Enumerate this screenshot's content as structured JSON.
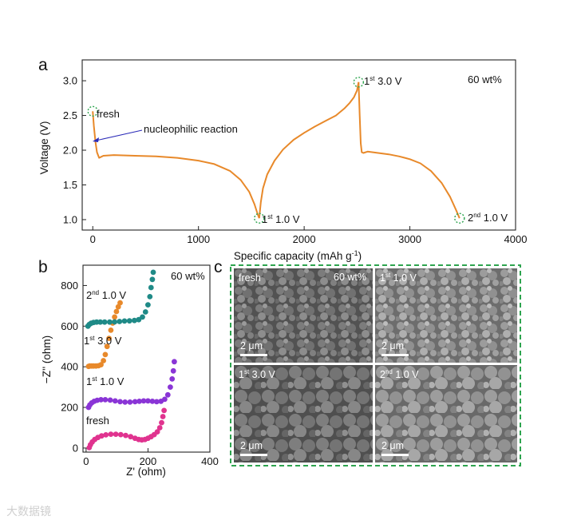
{
  "panel_a": {
    "letter": "a",
    "concentration": "60 wt%",
    "annotations": {
      "fresh": "fresh",
      "nucleophilic": "nucleophilic reaction",
      "p1_sup": "st",
      "p1_ord": "1",
      "p1_val": " 3.0 V",
      "p2_sup": "st",
      "p2_ord": "1",
      "p2_val": " 1.0 V",
      "p3_sup": "nd",
      "p3_ord": "2",
      "p3_val": " 1.0 V"
    }
  },
  "panel_b": {
    "letter": "b",
    "concentration": "60 wt%",
    "labels": {
      "fresh": "fresh",
      "l1_ord": "1",
      "l1_sup": "st",
      "l1_val": " 1.0 V",
      "l2_ord": "1",
      "l2_sup": "st",
      "l2_val": " 3.0 V",
      "l3_ord": "2",
      "l3_sup": "nd",
      "l3_val": " 1.0 V"
    }
  },
  "panel_c": {
    "letter": "c",
    "images": [
      {
        "label_ord": "fresh",
        "label_sup": "",
        "label_val": "",
        "extra": "60 wt%",
        "scale": "2 μm",
        "tone": "#6e6e6e"
      },
      {
        "label_ord": "1",
        "label_sup": "st",
        "label_val": " 1.0 V",
        "extra": "",
        "scale": "2 μm",
        "tone": "#7a7a7a"
      },
      {
        "label_ord": "1",
        "label_sup": "st",
        "label_val": " 3.0 V",
        "extra": "",
        "scale": "2 μm",
        "tone": "#6a6a6a"
      },
      {
        "label_ord": "2",
        "label_sup": "nd",
        "label_val": " 1.0 V",
        "extra": "",
        "scale": "2 μm",
        "tone": "#767676"
      }
    ],
    "border_color": "#2ea44f"
  },
  "watermark": "大数据镜",
  "chart_data": [
    {
      "type": "line",
      "title": "",
      "xlabel": "Specific capacity (mAh g",
      "xlabel_sup": "-1",
      "xlabel_tail": ")",
      "ylabel": "Voltage (V)",
      "xlim": [
        -100,
        4000
      ],
      "ylim": [
        0.85,
        3.3
      ],
      "xticks": [
        0,
        1000,
        2000,
        3000,
        4000
      ],
      "yticks": [
        1.0,
        1.5,
        2.0,
        2.5,
        3.0
      ],
      "xtick_labels": [
        "0",
        "1000",
        "2000",
        "3000",
        "4000"
      ],
      "ytick_labels": [
        "1.0",
        "1.5",
        "2.0",
        "2.5",
        "3.0"
      ],
      "color": "#e8892a",
      "series": [
        {
          "x": [
            0,
            10,
            25,
            40,
            60,
            100,
            200,
            400,
            600,
            800,
            1000,
            1150,
            1300,
            1400,
            1480,
            1530,
            1560,
            1575
          ],
          "y": [
            2.56,
            2.35,
            2.12,
            1.97,
            1.89,
            1.92,
            1.93,
            1.92,
            1.91,
            1.89,
            1.85,
            1.8,
            1.7,
            1.57,
            1.4,
            1.22,
            1.08,
            1.02
          ]
        },
        {
          "x": [
            1575,
            1590,
            1610,
            1650,
            1720,
            1800,
            1900,
            2000,
            2100,
            2200,
            2300,
            2380,
            2430,
            2470,
            2500,
            2515
          ],
          "y": [
            1.02,
            1.25,
            1.45,
            1.65,
            1.85,
            2.01,
            2.15,
            2.25,
            2.34,
            2.42,
            2.5,
            2.6,
            2.68,
            2.76,
            2.86,
            2.98
          ]
        },
        {
          "x": [
            2515,
            2525,
            2535,
            2545,
            2560,
            2600,
            2700,
            2800,
            2900,
            3000,
            3100,
            3200,
            3300,
            3380,
            3440,
            3470
          ],
          "y": [
            2.98,
            2.5,
            2.1,
            1.97,
            1.96,
            1.98,
            1.96,
            1.94,
            1.91,
            1.87,
            1.81,
            1.7,
            1.53,
            1.33,
            1.13,
            1.02
          ]
        }
      ],
      "markers": [
        {
          "x": 0,
          "y": 2.56
        },
        {
          "x": 1575,
          "y": 1.02
        },
        {
          "x": 2515,
          "y": 2.98
        },
        {
          "x": 3470,
          "y": 1.02
        }
      ]
    },
    {
      "type": "scatter",
      "title": "",
      "xlabel": "Z' (ohm)",
      "ylabel": "−Z'' (ohm)",
      "xlim": [
        -10,
        400
      ],
      "ylim": [
        -20,
        900
      ],
      "xticks": [
        0,
        200,
        400
      ],
      "yticks": [
        0,
        200,
        400,
        600,
        800
      ],
      "xtick_labels": [
        "0",
        "200",
        "400"
      ],
      "ytick_labels": [
        "0",
        "200",
        "400",
        "600",
        "800"
      ],
      "series": [
        {
          "color": "#e0338f",
          "x": [
            10,
            14,
            20,
            28,
            38,
            50,
            64,
            80,
            96,
            112,
            128,
            144,
            158,
            170,
            180,
            190,
            200,
            210,
            220,
            230,
            238,
            244,
            248,
            252
          ],
          "y": [
            2,
            16,
            30,
            42,
            52,
            60,
            65,
            68,
            68,
            66,
            62,
            56,
            48,
            42,
            40,
            42,
            48,
            56,
            66,
            80,
            100,
            125,
            155,
            185
          ]
        },
        {
          "color": "#8a35d6",
          "x": [
            8,
            12,
            18,
            26,
            36,
            48,
            62,
            78,
            94,
            110,
            126,
            142,
            158,
            172,
            186,
            200,
            214,
            228,
            242,
            254,
            264,
            272,
            278,
            282,
            285
          ],
          "y": [
            200,
            212,
            222,
            230,
            235,
            238,
            238,
            236,
            232,
            228,
            226,
            226,
            228,
            230,
            232,
            232,
            230,
            228,
            230,
            240,
            262,
            300,
            340,
            380,
            425
          ]
        },
        {
          "color": "#e8892a",
          "x": [
            8,
            12,
            18,
            24,
            32,
            40,
            48,
            56,
            62,
            68,
            74,
            80,
            86,
            92,
            98,
            104,
            110
          ],
          "y": [
            402,
            404,
            404,
            404,
            404,
            405,
            410,
            430,
            460,
            500,
            540,
            580,
            615,
            645,
            672,
            695,
            715
          ]
        },
        {
          "color": "#1f8a87",
          "x": [
            6,
            10,
            16,
            24,
            34,
            46,
            60,
            76,
            92,
            108,
            124,
            140,
            156,
            170,
            182,
            192,
            200,
            206,
            210,
            214,
            217
          ],
          "y": [
            600,
            608,
            614,
            618,
            620,
            620,
            620,
            620,
            621,
            623,
            625,
            626,
            628,
            632,
            645,
            670,
            705,
            745,
            790,
            830,
            865
          ]
        }
      ]
    }
  ]
}
